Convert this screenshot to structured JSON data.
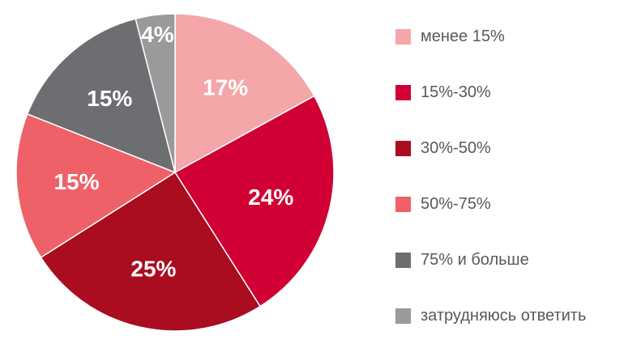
{
  "chart_data": {
    "type": "pie",
    "title": "",
    "start_angle_deg": 0,
    "direction": "clockwise",
    "legend_position": "right",
    "slices": [
      {
        "label": "менее 15%",
        "value": 17,
        "value_label": "17%",
        "color": "#F4A6A9"
      },
      {
        "label": "15%-30%",
        "value": 24,
        "value_label": "24%",
        "color": "#D10034"
      },
      {
        "label": "30%-50%",
        "value": 25,
        "value_label": "25%",
        "color": "#AA0C20"
      },
      {
        "label": "50%-75%",
        "value": 15,
        "value_label": "15%",
        "color": "#EF6168"
      },
      {
        "label": "75% и больше",
        "value": 15,
        "value_label": "15%",
        "color": "#6D6E71"
      },
      {
        "label": "затрудняюсь ответить",
        "value": 4,
        "value_label": "4%",
        "color": "#9A9A9A"
      }
    ]
  }
}
